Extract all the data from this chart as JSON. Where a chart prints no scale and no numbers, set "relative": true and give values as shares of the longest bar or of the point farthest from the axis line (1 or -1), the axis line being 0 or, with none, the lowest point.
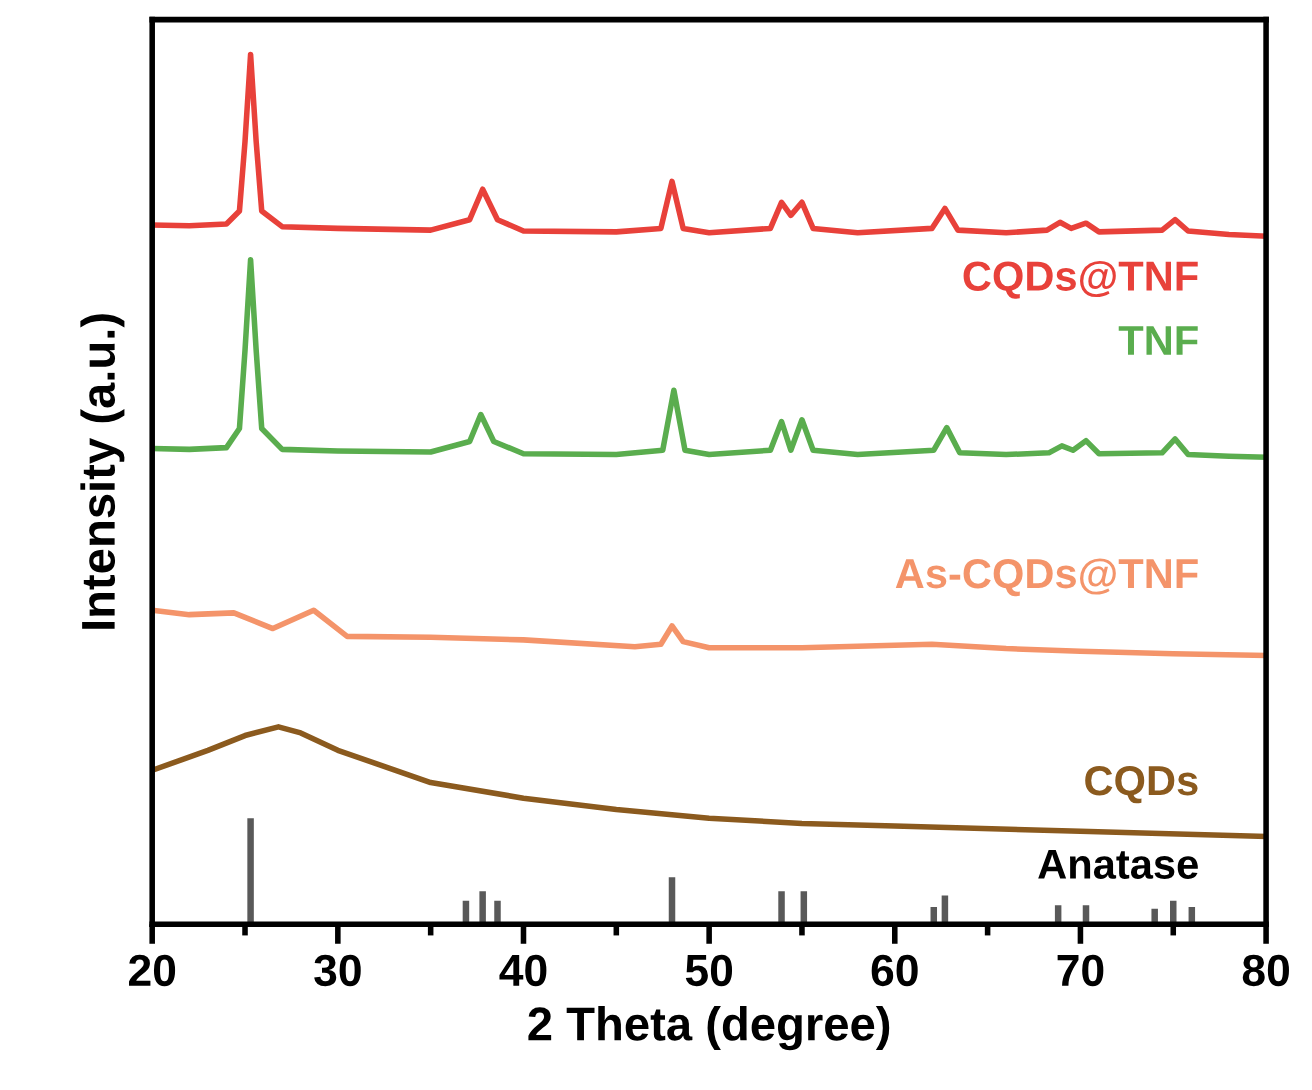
{
  "chart_data": {
    "type": "line",
    "relative": true,
    "xlabel": "2 Theta (degree)",
    "ylabel": "Intensity (a.u.)",
    "xlim": [
      20,
      80
    ],
    "xticks": [
      20,
      {
        "value": 25,
        "label": null
      },
      30,
      {
        "value": 35,
        "label": null
      },
      40,
      {
        "value": 45,
        "label": null
      },
      50,
      {
        "value": 55,
        "label": null
      },
      60,
      {
        "value": 65,
        "label": null
      },
      70,
      {
        "value": 75,
        "label": null
      },
      80
    ],
    "tick_labels": "x",
    "grid": false,
    "legend": false,
    "marker": "none",
    "line_style": "solid",
    "series": [
      {
        "name": "CQDs@TNF",
        "color": "#e8413a",
        "x": [
          20,
          22,
          24,
          24.7,
          25.0,
          25.3,
          25.6,
          25.9,
          27,
          30,
          35,
          37.1,
          37.8,
          38.6,
          40,
          45,
          47.4,
          48.0,
          48.6,
          50,
          53.3,
          53.9,
          54.4,
          55.0,
          55.6,
          58,
          62.0,
          62.7,
          63.4,
          66,
          68.2,
          68.9,
          69.5,
          70.3,
          71,
          74.4,
          75.1,
          75.8,
          78,
          80
        ],
        "values": [
          0.804,
          0.803,
          0.805,
          0.82,
          0.9,
          1,
          0.9,
          0.82,
          0.802,
          0.8,
          0.798,
          0.81,
          0.845,
          0.81,
          0.797,
          0.796,
          0.8,
          0.854,
          0.8,
          0.795,
          0.8,
          0.83,
          0.815,
          0.83,
          0.8,
          0.795,
          0.8,
          0.823,
          0.798,
          0.795,
          0.798,
          0.807,
          0.8,
          0.806,
          0.796,
          0.798,
          0.81,
          0.797,
          0.793,
          0.791
        ]
      },
      {
        "name": "TNF",
        "color": "#5aad4e",
        "x": [
          20,
          22,
          24,
          24.7,
          25.0,
          25.3,
          25.6,
          25.9,
          27,
          30,
          35,
          37.1,
          37.7,
          38.4,
          40,
          45,
          47.5,
          48.1,
          48.7,
          50,
          53.3,
          53.9,
          54.4,
          55.0,
          55.6,
          58,
          62.1,
          62.8,
          63.5,
          66,
          68.3,
          69.0,
          69.6,
          70.3,
          71,
          74.4,
          75.1,
          75.8,
          78,
          80
        ],
        "values": [
          0.547,
          0.546,
          0.548,
          0.57,
          0.66,
          0.764,
          0.66,
          0.57,
          0.546,
          0.544,
          0.543,
          0.555,
          0.586,
          0.555,
          0.541,
          0.54,
          0.545,
          0.614,
          0.545,
          0.54,
          0.545,
          0.578,
          0.545,
          0.58,
          0.545,
          0.54,
          0.545,
          0.571,
          0.542,
          0.54,
          0.542,
          0.55,
          0.545,
          0.556,
          0.541,
          0.542,
          0.558,
          0.54,
          0.538,
          0.537
        ]
      },
      {
        "name": "As-CQDs@TNF",
        "color": "#f4946a",
        "x": [
          20,
          22,
          24.4,
          26.5,
          28.7,
          30.5,
          35,
          40,
          46,
          47.4,
          48.0,
          48.6,
          50,
          55,
          62,
          66,
          70,
          75,
          80
        ],
        "values": [
          0.361,
          0.356,
          0.358,
          0.34,
          0.361,
          0.331,
          0.33,
          0.327,
          0.319,
          0.322,
          0.343,
          0.325,
          0.318,
          0.318,
          0.322,
          0.317,
          0.314,
          0.311,
          0.309
        ]
      },
      {
        "name": "CQDs",
        "color": "#8b5a1e",
        "x": [
          20,
          23,
          25,
          26.8,
          28,
          30,
          35,
          40,
          45,
          50,
          55,
          60,
          70,
          80
        ],
        "values": [
          0.177,
          0.2,
          0.217,
          0.227,
          0.22,
          0.2,
          0.163,
          0.145,
          0.132,
          0.122,
          0.116,
          0.113,
          0.107,
          0.101
        ]
      },
      {
        "name": "Anatase",
        "type": "bar",
        "color": "#595959",
        "x": [
          25.3,
          36.9,
          37.8,
          38.6,
          48.0,
          53.9,
          55.1,
          62.1,
          62.7,
          68.8,
          70.3,
          74.0,
          75.0,
          76.0
        ],
        "values": [
          0.122,
          0.027,
          0.038,
          0.027,
          0.054,
          0.038,
          0.038,
          0.02,
          0.033,
          0.022,
          0.022,
          0.018,
          0.027,
          0.02
        ]
      }
    ]
  }
}
